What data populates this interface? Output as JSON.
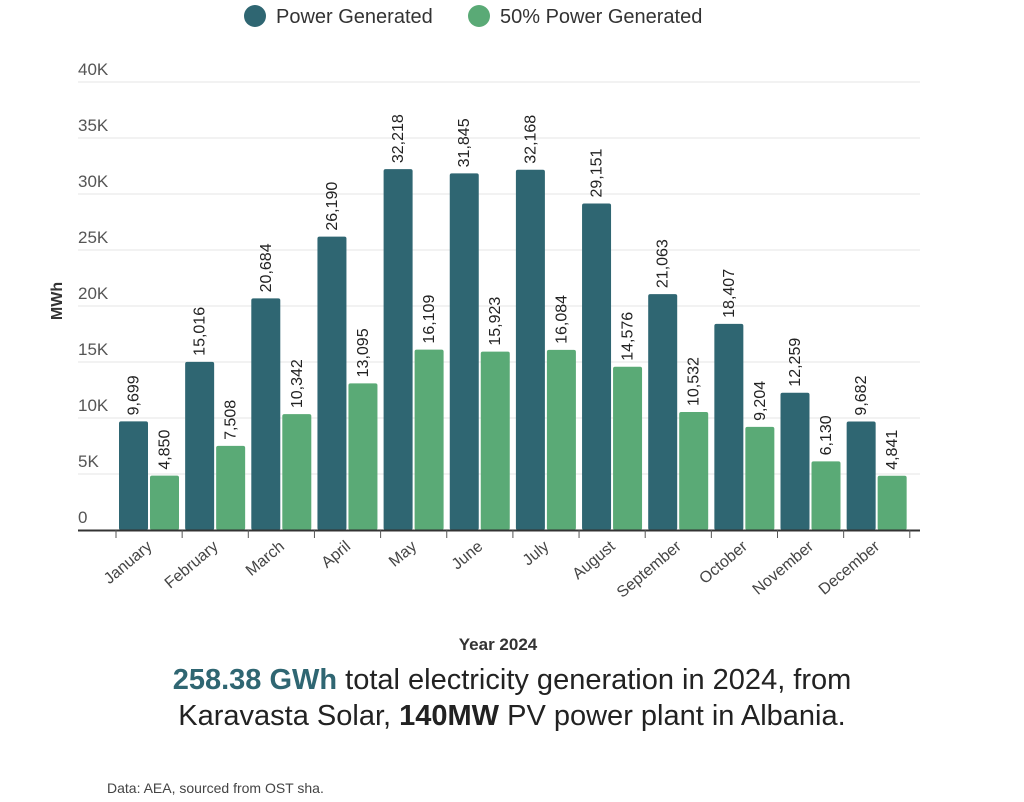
{
  "chart_data": {
    "type": "bar",
    "title": "",
    "xlabel": "Year 2024",
    "ylabel": "MWh",
    "ylim": [
      0,
      40000
    ],
    "yticks": [
      {
        "value": 0,
        "label": "0"
      },
      {
        "value": 5000,
        "label": "5K"
      },
      {
        "value": 10000,
        "label": "10K"
      },
      {
        "value": 15000,
        "label": "15K"
      },
      {
        "value": 20000,
        "label": "20K"
      },
      {
        "value": 25000,
        "label": "25K"
      },
      {
        "value": 30000,
        "label": "30K"
      },
      {
        "value": 35000,
        "label": "35K"
      },
      {
        "value": 40000,
        "label": "40K"
      }
    ],
    "grid": true,
    "legend_position": "top-center",
    "categories": [
      "January",
      "February",
      "March",
      "April",
      "May",
      "June",
      "July",
      "August",
      "September",
      "October",
      "November",
      "December"
    ],
    "series": [
      {
        "name": "Power Generated",
        "color": "#2f6672",
        "values": [
          9699,
          15016,
          20684,
          26190,
          32218,
          31845,
          32168,
          29151,
          21063,
          18407,
          12259,
          9682
        ],
        "labels": [
          "9,699",
          "15,016",
          "20,684",
          "26,190",
          "32,218",
          "31,845",
          "32,168",
          "29,151",
          "21,063",
          "18,407",
          "12,259",
          "9,682"
        ]
      },
      {
        "name": "50% Power Generated",
        "color": "#5aaa76",
        "values": [
          4850,
          7508,
          10342,
          13095,
          16109,
          15923,
          16084,
          14576,
          10532,
          9204,
          6130,
          4841
        ],
        "labels": [
          "4,850",
          "7,508",
          "10,342",
          "13,095",
          "16,109",
          "15,923",
          "16,084",
          "14,576",
          "10,532",
          "9,204",
          "6,130",
          "4,841"
        ]
      }
    ]
  },
  "caption": {
    "highlight": "258.38 GWh",
    "part1": " total electricity generation in 2024, from",
    "part2": "Karavasta Solar, ",
    "bold2": "140MW",
    "part3": " PV power plant in Albania."
  },
  "source": "Data: AEA, sourced from OST sha."
}
